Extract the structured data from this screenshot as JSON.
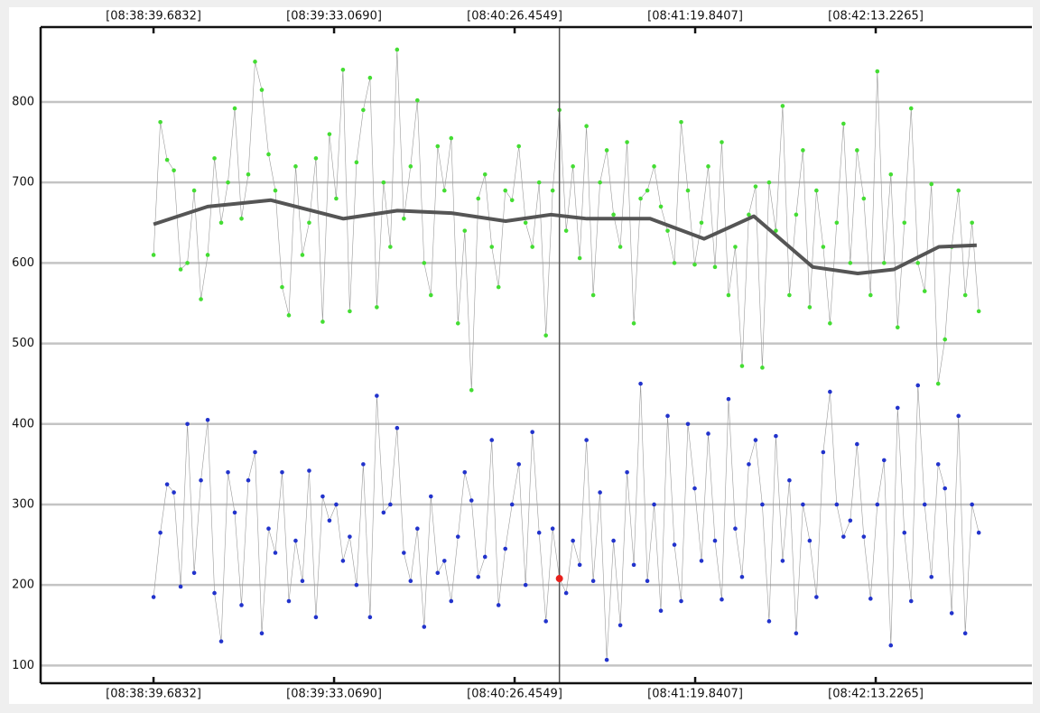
{
  "chart_data": {
    "type": "scatter-line",
    "xlim": [
      31086.3,
      31379.4
    ],
    "ylim": [
      78,
      893
    ],
    "xticks": [
      {
        "value": 31119.6832,
        "label": "[08:38:39.6832]"
      },
      {
        "value": 31173.069,
        "label": "[08:39:33.0690]"
      },
      {
        "value": 31226.4549,
        "label": "[08:40:26.4549]"
      },
      {
        "value": 31279.8407,
        "label": "[08:41:19.8407]"
      },
      {
        "value": 31333.2265,
        "label": "[08:42:13.2265]"
      }
    ],
    "yticks": [
      100,
      200,
      300,
      400,
      500,
      600,
      700,
      800
    ],
    "grid": true,
    "x": [
      31119.7,
      31121.7,
      31123.7,
      31125.7,
      31127.7,
      31129.7,
      31131.7,
      31133.7,
      31135.7,
      31137.7,
      31139.7,
      31141.7,
      31143.7,
      31145.7,
      31147.7,
      31149.7,
      31151.7,
      31153.7,
      31155.7,
      31157.7,
      31159.7,
      31161.7,
      31163.7,
      31165.7,
      31167.7,
      31169.7,
      31171.7,
      31173.7,
      31175.7,
      31177.7,
      31179.7,
      31181.7,
      31183.7,
      31185.7,
      31187.7,
      31189.7,
      31191.7,
      31193.7,
      31195.7,
      31197.7,
      31199.7,
      31201.7,
      31203.7,
      31205.7,
      31207.7,
      31209.7,
      31211.7,
      31213.7,
      31215.7,
      31217.7,
      31219.7,
      31221.7,
      31223.7,
      31225.7,
      31227.7,
      31229.7,
      31231.7,
      31233.7,
      31235.7,
      31237.7,
      31239.7,
      31241.7,
      31243.7,
      31245.7,
      31247.7,
      31249.7,
      31251.7,
      31253.7,
      31255.7,
      31257.7,
      31259.7,
      31261.7,
      31263.7,
      31265.7,
      31267.7,
      31269.7,
      31271.7,
      31273.7,
      31275.7,
      31277.7,
      31279.7,
      31281.7,
      31283.7,
      31285.7,
      31287.7,
      31289.7,
      31291.7,
      31293.7,
      31295.7,
      31297.7,
      31299.7,
      31301.7,
      31303.7,
      31305.7,
      31307.7,
      31309.7,
      31311.7,
      31313.7,
      31315.7,
      31317.7,
      31319.7,
      31321.7,
      31323.7,
      31325.7,
      31327.7,
      31329.7,
      31331.7,
      31333.7,
      31335.7,
      31337.7,
      31339.7,
      31341.7,
      31343.7,
      31345.7,
      31347.7,
      31349.7,
      31351.7,
      31353.7,
      31355.7,
      31357.7,
      31359.7,
      31361.7,
      31363.7
    ],
    "series": [
      {
        "color": "#44dd33",
        "values": [
          610,
          775,
          728,
          715,
          592,
          600,
          690,
          555,
          610,
          730,
          650,
          700,
          792,
          655,
          710,
          850,
          815,
          735,
          690,
          570,
          535,
          720,
          610,
          650,
          730,
          527,
          760,
          680,
          840,
          540,
          725,
          790,
          830,
          545,
          700,
          620,
          865,
          655,
          720,
          802,
          600,
          560,
          745,
          690,
          755,
          525,
          640,
          442,
          680,
          710,
          620,
          570,
          690,
          678,
          745,
          650,
          620,
          700,
          510,
          690,
          790,
          640,
          720,
          606,
          770,
          560,
          700,
          740,
          660,
          620,
          750,
          525,
          680,
          690,
          720,
          670,
          640,
          600,
          775,
          690,
          598,
          650,
          720,
          595,
          750,
          560,
          620,
          472,
          660,
          695,
          470,
          700,
          640,
          795,
          560,
          660,
          740,
          545,
          690,
          620,
          525,
          650,
          773,
          600,
          740,
          680,
          560,
          838,
          600,
          710,
          520,
          650,
          792,
          600,
          565,
          698,
          450,
          505,
          620,
          690,
          560,
          650,
          540
        ]
      },
      {
        "color": "#2233cc",
        "values": [
          185,
          265,
          325,
          315,
          198,
          400,
          215,
          330,
          405,
          190,
          130,
          340,
          290,
          175,
          330,
          365,
          140,
          270,
          240,
          340,
          180,
          255,
          205,
          342,
          160,
          310,
          280,
          300,
          230,
          260,
          200,
          350,
          160,
          435,
          290,
          300,
          395,
          240,
          205,
          270,
          148,
          310,
          215,
          230,
          180,
          260,
          340,
          305,
          210,
          235,
          380,
          175,
          245,
          300,
          350,
          200,
          390,
          265,
          155,
          270,
          208,
          190,
          255,
          225,
          380,
          205,
          315,
          107,
          255,
          150,
          340,
          225,
          450,
          205,
          300,
          168,
          410,
          250,
          180,
          400,
          320,
          230,
          388,
          255,
          182,
          431,
          270,
          210,
          350,
          380,
          300,
          155,
          385,
          230,
          330,
          140,
          300,
          255,
          185,
          365,
          440,
          300,
          260,
          280,
          375,
          260,
          183,
          300,
          355,
          125,
          420,
          265,
          180,
          448,
          300,
          210,
          350,
          320,
          165,
          410,
          140,
          300,
          265
        ]
      },
      {
        "color": "#555555",
        "x": [
          31119.7,
          31135.7,
          31154.4,
          31175.8,
          31191.8,
          31207.8,
          31223.8,
          31237.2,
          31247.8,
          31266.5,
          31282.5,
          31297.2,
          31314.6,
          31327.9,
          31338.6,
          31351.9,
          31363.1
        ],
        "values": [
          648,
          670,
          678,
          655,
          665,
          662,
          652,
          660,
          655,
          655,
          630,
          658,
          595,
          587,
          592,
          620,
          622
        ]
      }
    ],
    "highlight": {
      "series": 1,
      "index": 60,
      "color": "#e8201c"
    }
  }
}
